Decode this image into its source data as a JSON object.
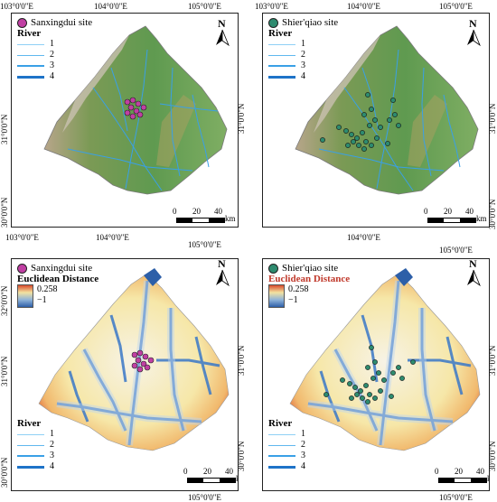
{
  "colors": {
    "sanxingdui": "#c03fa3",
    "shierqiao": "#2e8b6f",
    "river": "#3aa0e6",
    "river_light": "#8fd0f5"
  },
  "panels": [
    {
      "id": "a",
      "site_label": "Sanxingdui site",
      "site_color_key": "sanxingdui",
      "legend": {
        "title": "River",
        "items": [
          "1",
          "2",
          "3",
          "4"
        ]
      },
      "lon_ticks_top": [
        "103°0'0\"E",
        "104°0'0\"E",
        "105°0'0\"E"
      ],
      "lon_ticks_bottom": [
        "103°0'0\"E",
        "104°0'0\"E",
        "105°0'0\"E"
      ],
      "lat_ticks": [
        "31°0'0\"N",
        "30°0'0\"N"
      ],
      "scale": {
        "nums": [
          "0",
          "20",
          "40"
        ],
        "unit": "km"
      },
      "north": "N"
    },
    {
      "id": "b",
      "site_label": "Shier'qiao site",
      "site_color_key": "shierqiao",
      "legend": {
        "title": "River",
        "items": [
          "1",
          "2",
          "3",
          "4"
        ]
      },
      "lon_ticks_top": [
        "103°0'0\"E",
        "104°0'0\"E",
        "105°0'0\"E"
      ],
      "lon_ticks_bottom": [
        "104°0'0\"E"
      ],
      "lat_ticks": [
        "31°0'0\"N",
        "30°0'0\"N"
      ],
      "scale": {
        "nums": [
          "0",
          "20",
          "40"
        ],
        "unit": "km"
      },
      "north": "N"
    },
    {
      "id": "c",
      "site_label": "Sanxingdui site",
      "site_color_key": "sanxingdui",
      "ed_title": "Euclidean Distance",
      "ed_max": "0.258",
      "ed_min": "−1",
      "legend": {
        "title": "River",
        "items": [
          "1",
          "2",
          "3",
          "4"
        ]
      },
      "lon_ticks_bottom": [
        "105°0'0\"E"
      ],
      "lat_ticks_left": [
        "32°0'0\"N",
        "31°0'0\"N",
        "30°0'0\"N"
      ],
      "scale": {
        "nums": [
          "0",
          "20",
          "40"
        ],
        "unit": "km"
      },
      "north": "N"
    },
    {
      "id": "d",
      "site_label": "Shier'qiao site",
      "site_color_key": "shierqiao",
      "ed_title": "Euclidean Distance",
      "ed_max": "0.258",
      "ed_min": "−1",
      "legend": {
        "title": "River",
        "items": [
          "1",
          "2",
          "3",
          "4"
        ]
      },
      "lon_ticks_top": [
        "105°0'0\"E"
      ],
      "lon_ticks_bottom": [
        "105°0'0\"E"
      ],
      "lat_ticks": [
        "31°0'0\"N",
        "30°0'0\"N"
      ],
      "scale": {
        "nums": [
          "0",
          "20",
          "40"
        ],
        "unit": "km"
      },
      "north": "N"
    }
  ]
}
